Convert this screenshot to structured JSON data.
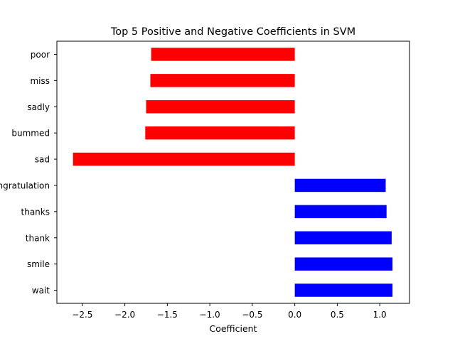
{
  "chart_data": {
    "type": "bar",
    "orientation": "horizontal",
    "title": "Top 5 Positive and Negative Coefficients in SVM",
    "xlabel": "Coefficient",
    "ylabel": "",
    "xlim": [
      -2.8,
      1.35
    ],
    "xticks": [
      -2.5,
      -2.0,
      -1.5,
      -1.0,
      -0.5,
      0.0,
      0.5,
      1.0
    ],
    "xtick_labels": [
      "−2.5",
      "−2.0",
      "−1.5",
      "−1.0",
      "−0.5",
      "0.0",
      "0.5",
      "1.0"
    ],
    "categories": [
      "poor",
      "miss",
      "sadly",
      "bummed",
      "sad",
      "congratulation",
      "thanks",
      "thank",
      "smile",
      "wait"
    ],
    "values": [
      -1.69,
      -1.7,
      -1.75,
      -1.76,
      -2.61,
      1.07,
      1.08,
      1.14,
      1.15,
      1.15
    ],
    "colors": [
      "#ff0000",
      "#ff0000",
      "#ff0000",
      "#ff0000",
      "#ff0000",
      "#0000ff",
      "#0000ff",
      "#0000ff",
      "#0000ff",
      "#0000ff"
    ],
    "grid": false,
    "legend": "none"
  }
}
